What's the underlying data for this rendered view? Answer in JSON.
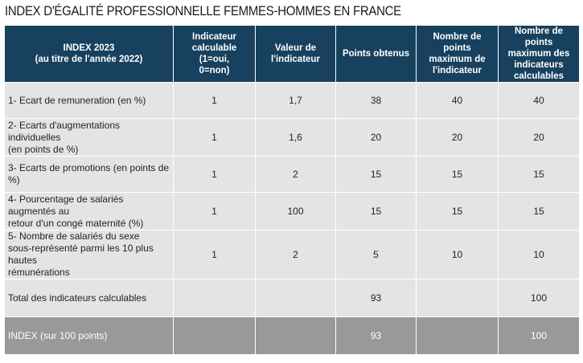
{
  "title": "INDEX D'ÉGALITÉ PROFESSIONNELLE FEMMES-HOMMES EN FRANCE",
  "headers": [
    [
      "INDEX 2023",
      "(au titre de l'année 2022)"
    ],
    [
      "Indicateur",
      "calculable (1=oui,",
      "0=non)"
    ],
    [
      "Valeur de",
      "l'indicateur"
    ],
    [
      "Points obtenus"
    ],
    [
      "Nombre de points",
      "maximum de",
      "l'indicateur"
    ],
    [
      "Nombre de points",
      "maximum des",
      "indicateurs",
      "calculables"
    ]
  ],
  "rows": [
    {
      "label": [
        "1- Ecart de remuneration (en %)"
      ],
      "calculable": "1",
      "valeur": "1,7",
      "points": "38",
      "max": "40",
      "max_calc": "40"
    },
    {
      "label": [
        "2- Ecarts d'augmentations individuelles",
        "(en points de %)"
      ],
      "calculable": "1",
      "valeur": "1,6",
      "points": "20",
      "max": "20",
      "max_calc": "20"
    },
    {
      "label": [
        "3- Ecarts de promotions (en points de %)"
      ],
      "calculable": "1",
      "valeur": "2",
      "points": "15",
      "max": "15",
      "max_calc": "15"
    },
    {
      "label": [
        "4- Pourcentage de salariés augmentés au",
        "retour d'un congé maternité (%)"
      ],
      "calculable": "1",
      "valeur": "100",
      "points": "15",
      "max": "15",
      "max_calc": "15"
    },
    {
      "label": [
        "5- Nombre de salariés du sexe",
        "sous-représenté parmi les 10 plus hautes",
        "rémunérations"
      ],
      "calculable": "1",
      "valeur": "2",
      "points": "5",
      "max": "10",
      "max_calc": "10"
    },
    {
      "label": [
        "Total des indicateurs calculables"
      ],
      "calculable": "",
      "valeur": "",
      "points": "93",
      "max": "",
      "max_calc": "100"
    }
  ],
  "index_row": {
    "label": "INDEX (sur 100 points)",
    "calculable": "",
    "valeur": "",
    "points": "93",
    "max": "",
    "max_calc": "100"
  }
}
